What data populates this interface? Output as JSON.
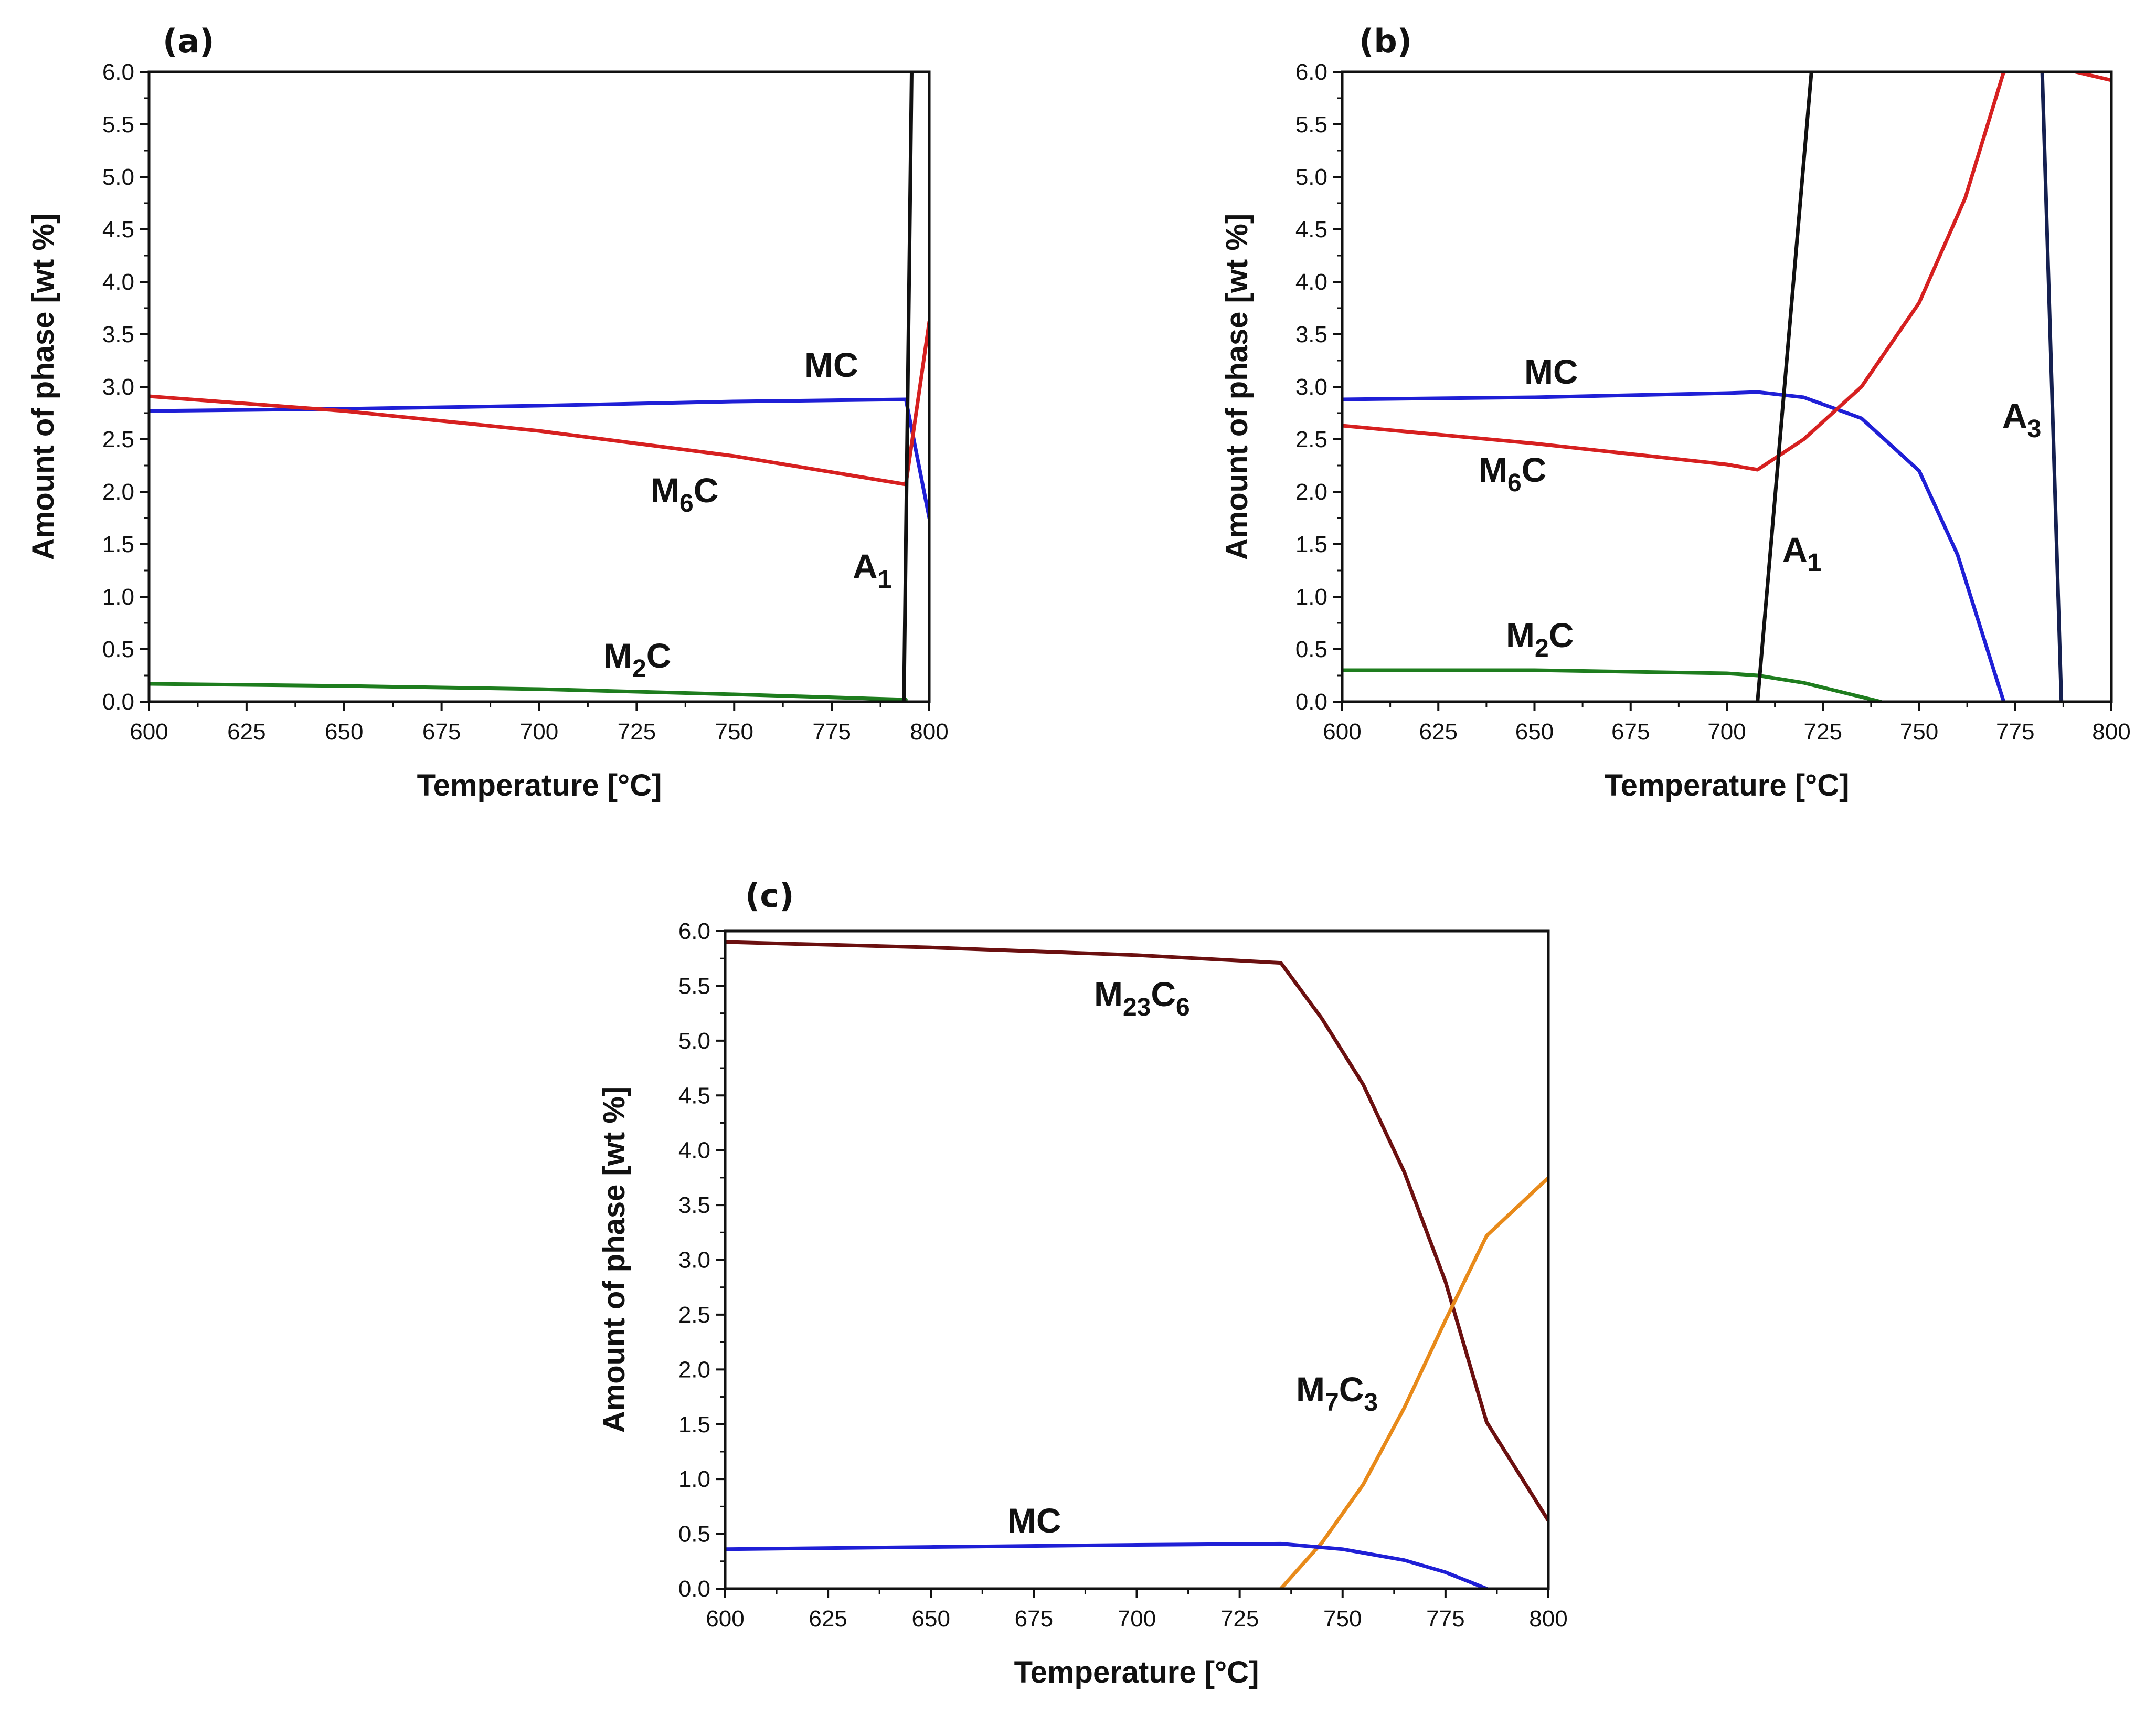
{
  "chart_data": [
    {
      "type": "line",
      "panel_label": "(a)",
      "xlabel": "Temperature [°C]",
      "ylabel": "Amount of phase [wt %]",
      "xlim": [
        600,
        800
      ],
      "ylim": [
        0,
        6
      ],
      "xticks": [
        "600",
        "625",
        "650",
        "675",
        "700",
        "725",
        "750",
        "775",
        "800"
      ],
      "yticks": [
        "0.0",
        "0.5",
        "1.0",
        "1.5",
        "2.0",
        "2.5",
        "3.0",
        "3.5",
        "4.0",
        "4.5",
        "5.0",
        "5.5",
        "6.0"
      ],
      "series": [
        {
          "name": "MC",
          "label_main": "MC",
          "label_sub": "",
          "color": "#1f1fd6",
          "x": [
            600,
            650,
            700,
            750,
            794,
            800
          ],
          "y": [
            2.77,
            2.79,
            2.82,
            2.86,
            2.88,
            1.75
          ]
        },
        {
          "name": "M6C",
          "label_main": "M",
          "label_sub": "6",
          "label_tail": "C",
          "color": "#d62020",
          "x": [
            600,
            650,
            700,
            750,
            794,
            800
          ],
          "y": [
            2.91,
            2.77,
            2.58,
            2.34,
            2.07,
            3.62
          ]
        },
        {
          "name": "M2C",
          "label_main": "M",
          "label_sub": "2",
          "label_tail": "C",
          "color": "#1e7d1e",
          "x": [
            600,
            650,
            700,
            750,
            794
          ],
          "y": [
            0.17,
            0.15,
            0.12,
            0.07,
            0.02
          ]
        },
        {
          "name": "A1",
          "label_main": "A",
          "label_sub": "1",
          "label_tail": "",
          "color": "#111111",
          "x": [
            793.5,
            795.5
          ],
          "y": [
            0.0,
            6.0
          ]
        }
      ]
    },
    {
      "type": "line",
      "panel_label": "(b)",
      "xlabel": "Temperature [°C]",
      "ylabel": "Amount of phase [wt %]",
      "xlim": [
        600,
        800
      ],
      "ylim": [
        0,
        6
      ],
      "xticks": [
        "600",
        "625",
        "650",
        "675",
        "700",
        "725",
        "750",
        "775",
        "800"
      ],
      "yticks": [
        "0.0",
        "0.5",
        "1.0",
        "1.5",
        "2.0",
        "2.5",
        "3.0",
        "3.5",
        "4.0",
        "4.5",
        "5.0",
        "5.5",
        "6.0"
      ],
      "series": [
        {
          "name": "MC",
          "label_main": "MC",
          "label_sub": "",
          "color": "#1f1fd6",
          "x": [
            600,
            650,
            700,
            708,
            720,
            735,
            750,
            760,
            772
          ],
          "y": [
            2.88,
            2.9,
            2.94,
            2.95,
            2.9,
            2.7,
            2.2,
            1.4,
            0.0
          ]
        },
        {
          "name": "M6C",
          "label_main": "M",
          "label_sub": "6",
          "label_tail": "C",
          "color": "#d62020",
          "x": [
            600,
            650,
            700,
            708,
            720,
            735,
            750,
            762,
            772,
            785,
            800
          ],
          "y": [
            2.63,
            2.46,
            2.26,
            2.21,
            2.5,
            3.0,
            3.8,
            4.8,
            6.0,
            6.05,
            5.92
          ]
        },
        {
          "name": "M2C",
          "label_main": "M",
          "label_sub": "2",
          "label_tail": "C",
          "color": "#1e7d1e",
          "x": [
            600,
            650,
            700,
            708,
            720,
            730,
            740
          ],
          "y": [
            0.3,
            0.3,
            0.27,
            0.25,
            0.18,
            0.09,
            0.0
          ]
        },
        {
          "name": "A1",
          "label_main": "A",
          "label_sub": "1",
          "label_tail": "",
          "color": "#111111",
          "x": [
            708,
            722
          ],
          "y": [
            0.0,
            6.0
          ]
        },
        {
          "name": "A3",
          "label_main": "A",
          "label_sub": "3",
          "label_tail": "",
          "color": "#152050",
          "x": [
            782,
            787
          ],
          "y": [
            6.0,
            0.0
          ]
        }
      ]
    },
    {
      "type": "line",
      "panel_label": "(c)",
      "xlabel": "Temperature [°C]",
      "ylabel": "Amount of phase [wt %]",
      "xlim": [
        600,
        800
      ],
      "ylim": [
        0,
        6
      ],
      "xticks": [
        "600",
        "625",
        "650",
        "675",
        "700",
        "725",
        "750",
        "775",
        "800"
      ],
      "yticks": [
        "0.0",
        "0.5",
        "1.0",
        "1.5",
        "2.0",
        "2.5",
        "3.0",
        "3.5",
        "4.0",
        "4.5",
        "5.0",
        "5.5",
        "6.0"
      ],
      "series": [
        {
          "name": "M23C6",
          "label_main": "M",
          "label_sub": "23",
          "label_tail": "C",
          "label_sub2": "6",
          "color": "#6b1010",
          "x": [
            600,
            650,
            700,
            735,
            745,
            755,
            765,
            775,
            785,
            800
          ],
          "y": [
            5.9,
            5.85,
            5.78,
            5.71,
            5.2,
            4.6,
            3.8,
            2.8,
            1.52,
            0.62
          ]
        },
        {
          "name": "M7C3",
          "label_main": "M",
          "label_sub": "7",
          "label_tail": "C",
          "label_sub2": "3",
          "color": "#e88a1a",
          "x": [
            735,
            745,
            755,
            765,
            775,
            785,
            800
          ],
          "y": [
            0.0,
            0.42,
            0.95,
            1.65,
            2.45,
            3.22,
            3.75
          ]
        },
        {
          "name": "MC",
          "label_main": "MC",
          "label_sub": "",
          "label_tail": "",
          "label_sub2": "",
          "color": "#1f1fd6",
          "x": [
            600,
            650,
            700,
            735,
            750,
            765,
            775,
            785
          ],
          "y": [
            0.36,
            0.38,
            0.4,
            0.41,
            0.36,
            0.26,
            0.15,
            0.0
          ]
        }
      ]
    }
  ]
}
